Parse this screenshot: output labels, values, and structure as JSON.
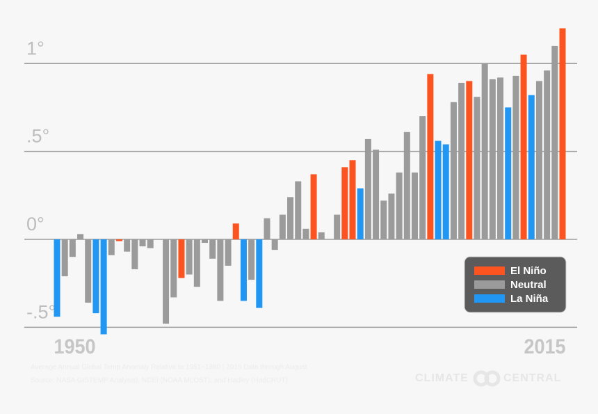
{
  "chart_data": {
    "type": "bar",
    "categories": [
      "1950",
      null,
      null,
      null,
      null,
      null,
      null,
      null,
      null,
      null,
      null,
      null,
      null,
      null,
      null,
      null,
      null,
      null,
      null,
      null,
      null,
      null,
      null,
      null,
      null,
      null,
      null,
      null,
      null,
      null,
      null,
      null,
      null,
      null,
      null,
      null,
      null,
      null,
      null,
      null,
      null,
      null,
      null,
      null,
      null,
      null,
      null,
      null,
      null,
      null,
      null,
      null,
      null,
      null,
      null,
      null,
      null,
      null,
      null,
      null,
      null,
      null,
      null,
      null,
      null,
      "2015"
    ],
    "values": [
      -0.44,
      -0.21,
      -0.1,
      0.03,
      -0.36,
      -0.42,
      -0.54,
      -0.09,
      -0.01,
      -0.07,
      -0.17,
      -0.04,
      -0.05,
      0.0,
      -0.48,
      -0.33,
      -0.22,
      -0.2,
      -0.27,
      -0.02,
      -0.11,
      -0.35,
      -0.15,
      0.09,
      -0.35,
      -0.23,
      -0.39,
      0.12,
      -0.06,
      0.14,
      0.24,
      0.33,
      0.06,
      0.37,
      0.04,
      0.0,
      0.14,
      0.41,
      0.45,
      0.29,
      0.57,
      0.51,
      0.22,
      0.26,
      0.38,
      0.61,
      0.38,
      0.7,
      0.94,
      0.56,
      0.54,
      0.78,
      0.89,
      0.9,
      0.81,
      1.0,
      0.91,
      0.92,
      0.75,
      0.93,
      1.05,
      0.82,
      0.9,
      0.96,
      1.1,
      1.2
    ],
    "phase": [
      2,
      1,
      1,
      1,
      1,
      2,
      2,
      1,
      0,
      1,
      1,
      1,
      1,
      1,
      1,
      1,
      0,
      1,
      1,
      1,
      1,
      1,
      1,
      0,
      2,
      1,
      2,
      1,
      1,
      1,
      1,
      1,
      1,
      0,
      1,
      1,
      1,
      0,
      0,
      2,
      1,
      1,
      1,
      1,
      1,
      1,
      1,
      1,
      0,
      2,
      2,
      1,
      1,
      0,
      1,
      1,
      1,
      1,
      2,
      1,
      0,
      2,
      1,
      1,
      1,
      0
    ],
    "legend": [
      {
        "name": "El Niño",
        "color": "#fc5420"
      },
      {
        "name": "Neutral",
        "color": "#9b9b9b"
      },
      {
        "name": "La Niña",
        "color": "#2196f3"
      }
    ],
    "ylim": [
      -0.55,
      1.25
    ],
    "yticks": [
      {
        "value": 1,
        "label": "1°"
      },
      {
        "value": 0.5,
        "label": ".5°"
      },
      {
        "value": 0,
        "label": "0°"
      },
      {
        "value": -0.5,
        "label": "-.5°"
      }
    ],
    "grid": true,
    "legend_position": "lower right",
    "footnote": [
      "Average Annual Global Temp Anomaly Relative to 1951–1980 | 2015 Data through August",
      "Source: NASA GISTEMP Analysis), NCEI (NOAA MLOST), and Hadley (HadCRUT)"
    ],
    "brand": [
      "CLIMATE",
      "CENTRAL"
    ]
  }
}
